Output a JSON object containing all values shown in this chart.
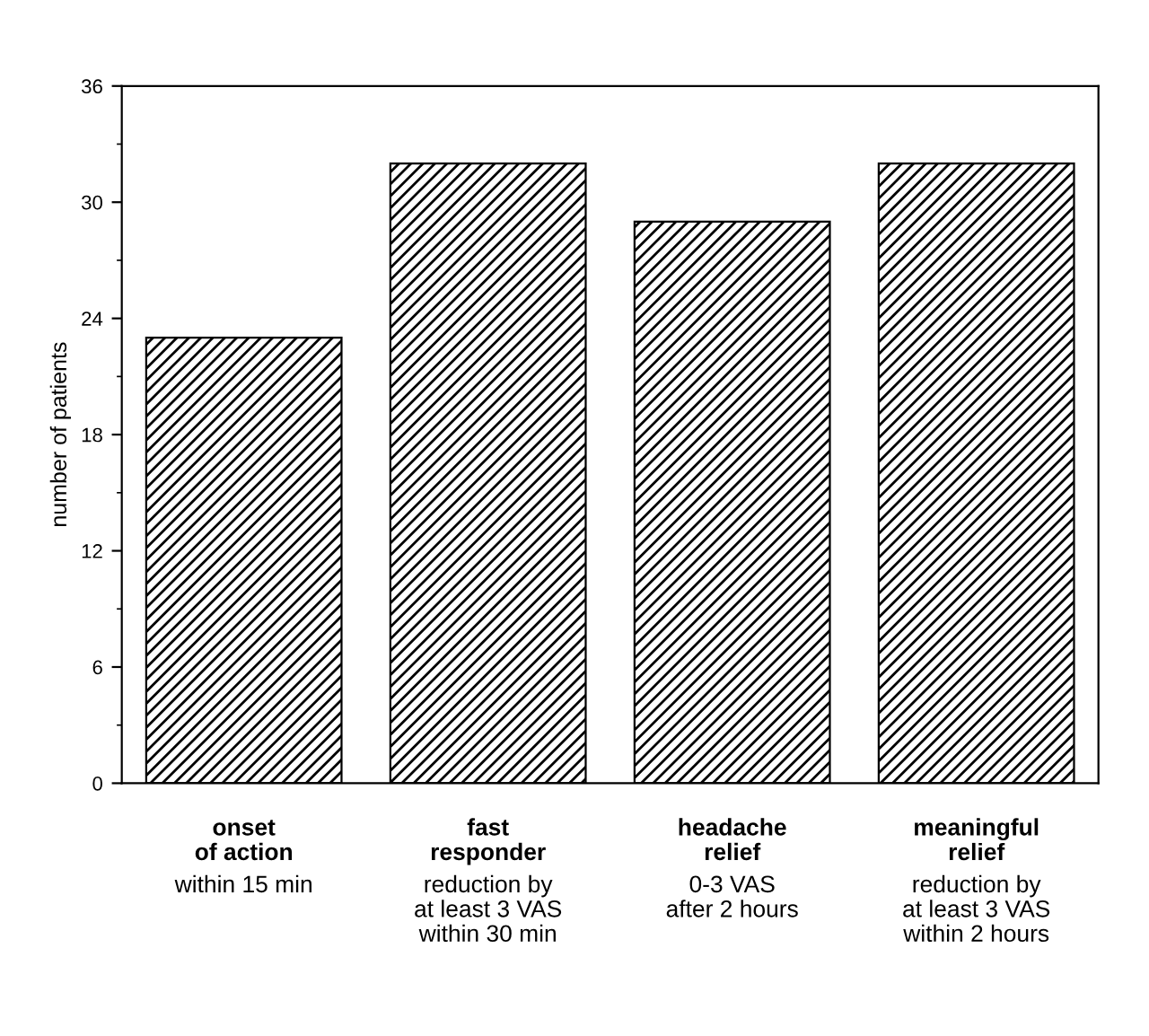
{
  "chart_data": {
    "type": "bar",
    "ylabel": "number of patients",
    "categories": [
      "onset\nof action\nwithin 15 min",
      "fast\nresponder\nreduction by\nat least 3 VAS\nwithin 30 min",
      "headache\nrelief\n0-3 VAS\nafter 2 hours",
      "meaningful\nrelief\nreduction by\nat least 3 VAS\nwithin 2 hours"
    ],
    "values": [
      23,
      32,
      29,
      32
    ],
    "color": "#000000",
    "ylim": [
      0,
      36
    ],
    "yticks": [
      0,
      6,
      12,
      18,
      24,
      30,
      36
    ],
    "grid": false,
    "legend": false
  }
}
